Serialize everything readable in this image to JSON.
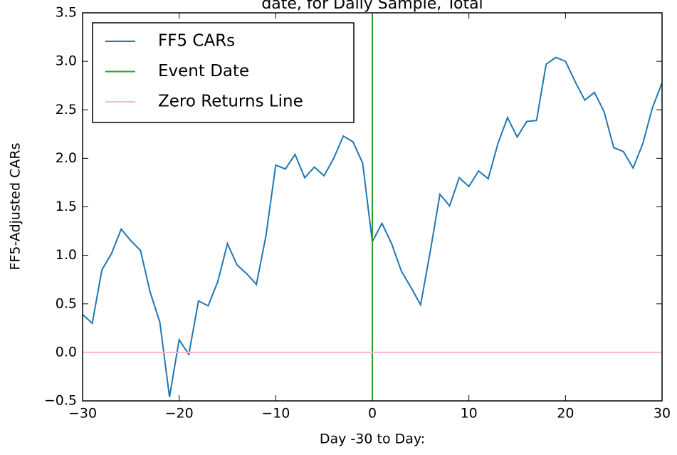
{
  "chart_data": {
    "type": "line",
    "title": "date, for Daily Sample, Total",
    "x_label": "Day -30 to Day:",
    "y_label": "FF5-Adjusted CARs",
    "x": [
      -30,
      -29,
      -28,
      -27,
      -26,
      -25,
      -24,
      -23,
      -22,
      -21,
      -20,
      -19,
      -18,
      -17,
      -16,
      -15,
      -14,
      -13,
      -12,
      -11,
      -10,
      -9,
      -8,
      -7,
      -6,
      -5,
      -4,
      -3,
      -2,
      -1,
      0,
      1,
      2,
      3,
      4,
      5,
      6,
      7,
      8,
      9,
      10,
      11,
      12,
      13,
      14,
      15,
      16,
      17,
      18,
      19,
      20,
      21,
      22,
      23,
      24,
      25,
      26,
      27,
      28,
      29,
      30
    ],
    "series": [
      {
        "name": "FF5 CARs",
        "color": "#1f77b4",
        "values": [
          0.39,
          0.3,
          0.85,
          1.02,
          1.27,
          1.15,
          1.05,
          0.62,
          0.31,
          -0.46,
          0.13,
          -0.02,
          0.53,
          0.48,
          0.73,
          1.12,
          0.9,
          0.81,
          0.7,
          1.21,
          1.93,
          1.89,
          2.04,
          1.8,
          1.91,
          1.82,
          2.0,
          2.23,
          2.17,
          1.95,
          1.14,
          1.33,
          1.12,
          0.84,
          0.67,
          0.49,
          1.04,
          1.63,
          1.51,
          1.8,
          1.71,
          1.87,
          1.79,
          2.15,
          2.42,
          2.22,
          2.38,
          2.39,
          2.97,
          3.04,
          3.0,
          2.79,
          2.6,
          2.68,
          2.48,
          2.11,
          2.07,
          1.9,
          2.15,
          2.52,
          2.78
        ]
      },
      {
        "name": "Event Date",
        "color": "#2ca02c",
        "x_value": 0
      },
      {
        "name": "Zero Returns Line",
        "color": "#f7b6d2",
        "y_value": 0
      }
    ],
    "xlim": [
      -30,
      30
    ],
    "ylim": [
      -0.5,
      3.5
    ],
    "xticks": [
      {
        "value": -30,
        "label": "−30"
      },
      {
        "value": -20,
        "label": "−20"
      },
      {
        "value": -10,
        "label": "−10"
      },
      0,
      10,
      20,
      30
    ],
    "yticks": [
      {
        "value": -0.5,
        "label": "−0.5"
      },
      {
        "value": 0,
        "label": "0.0"
      },
      {
        "value": 0.5,
        "label": "0.5"
      },
      {
        "value": 1,
        "label": "1.0"
      },
      {
        "value": 1.5,
        "label": "1.5"
      },
      {
        "value": 2,
        "label": "2.0"
      },
      {
        "value": 2.5,
        "label": "2.5"
      },
      {
        "value": 3,
        "label": "3.0"
      },
      {
        "value": 3.5,
        "label": "3.5"
      }
    ],
    "legend": "upper left"
  }
}
